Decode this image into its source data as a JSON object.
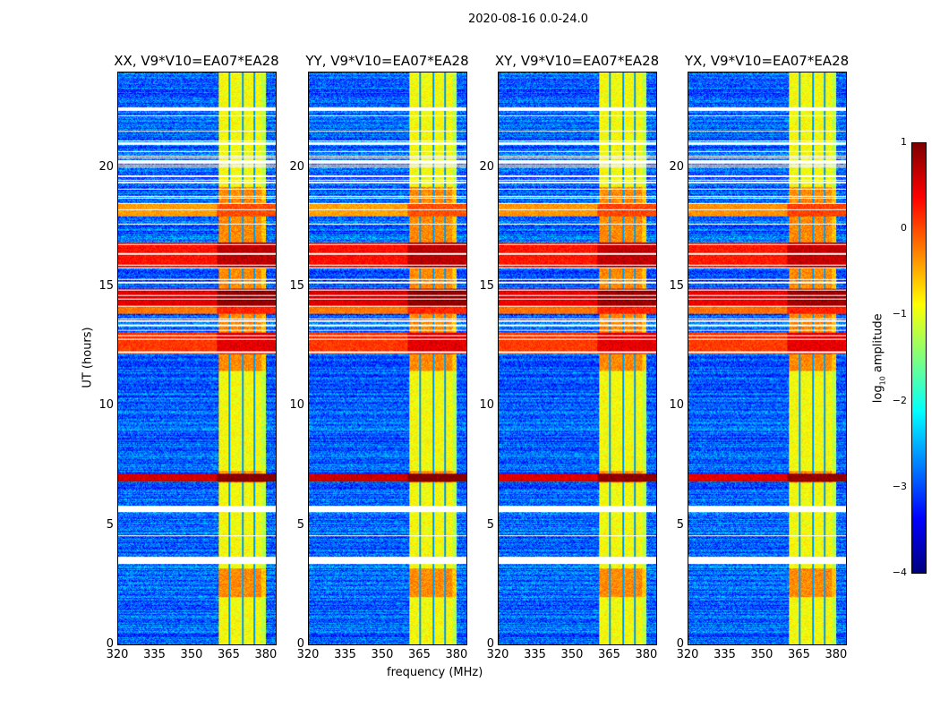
{
  "chart_data": {
    "type": "heatmap",
    "title": "2020-08-16 0.0-24.0",
    "xlabel": "frequency (MHz)",
    "ylabel": "UT (hours)",
    "xlim": [
      320,
      384
    ],
    "ylim": [
      0,
      24
    ],
    "xticks": [
      "320",
      "335",
      "350",
      "365",
      "380"
    ],
    "yticks": [
      "0",
      "5",
      "10",
      "15",
      "20"
    ],
    "panels": [
      {
        "title": "XX, V9*V10=EA07*EA28",
        "band_scale": 1.0
      },
      {
        "title": "YY, V9*V10=EA07*EA28",
        "band_scale": 1.05
      },
      {
        "title": "XY, V9*V10=EA07*EA28",
        "band_scale": 0.9
      },
      {
        "title": "YX, V9*V10=EA07*EA28",
        "band_scale": 0.85
      }
    ],
    "colorbar": {
      "label": "log10 amplitude",
      "label_main": "log",
      "label_sub": "10",
      "label_tail": " amplitude",
      "range": [
        -4,
        1
      ],
      "ticks": [
        "1",
        "0",
        "−1",
        "−2",
        "−3",
        "−4"
      ],
      "colormap": "jet"
    },
    "background_level": -2.9,
    "rfi_block_mhz": [
      360.5,
      380
    ],
    "rfi_block_level": -0.9,
    "rfi_block_dark_lines_mhz": [
      365,
      370.3,
      375.3
    ],
    "rfi_block_edge_low_mhz": [
      378,
      384
    ],
    "time_bands": [
      {
        "from": 6.85,
        "to": 7.2,
        "level": 0.6
      },
      {
        "from": 12.2,
        "to": 13.1,
        "level": 0.1
      },
      {
        "from": 13.9,
        "to": 14.2,
        "level": -0.2
      },
      {
        "from": 14.2,
        "to": 14.95,
        "level": 0.5
      },
      {
        "from": 15.8,
        "to": 16.9,
        "level": 0.3
      },
      {
        "from": 18.0,
        "to": 18.5,
        "level": -0.4
      }
    ],
    "bright_block_hours": [
      [
        11.5,
        19.2
      ],
      [
        6.8,
        7.3
      ],
      [
        2.0,
        3.2
      ]
    ],
    "gaps_hours": [
      [
        5.55,
        5.85
      ],
      [
        3.4,
        3.7
      ],
      [
        20.2,
        20.35
      ],
      [
        22.4,
        22.55
      ],
      [
        21.0,
        21.1
      ],
      [
        4.55,
        4.6
      ]
    ]
  }
}
